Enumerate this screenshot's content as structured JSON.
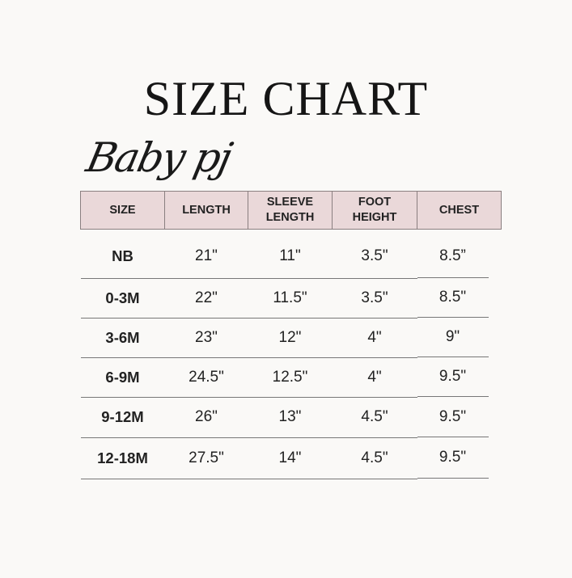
{
  "title": "SIZE CHART",
  "subtitle": "Baby pj",
  "colors": {
    "header_fill": "#ead8d9",
    "border": "#8a7f80",
    "background": "#faf9f7"
  },
  "table": {
    "headers": [
      "SIZE",
      "LENGTH",
      "SLEEVE LENGTH",
      "FOOT HEIGHT",
      "CHEST"
    ],
    "rows": [
      [
        "NB",
        "21\"",
        "11\"",
        "3.5\"",
        "8.5”"
      ],
      [
        "0-3M",
        "22\"",
        "11.5\"",
        "3.5\"",
        "8.5\""
      ],
      [
        "3-6M",
        "23\"",
        "12\"",
        "4\"",
        "9\""
      ],
      [
        "6-9M",
        "24.5\"",
        "12.5\"",
        "4\"",
        "9.5\""
      ],
      [
        "9-12M",
        "26\"",
        "13\"",
        "4.5\"",
        "9.5\""
      ],
      [
        "12-18M",
        "27.5\"",
        "14\"",
        "4.5\"",
        "9.5\""
      ]
    ]
  }
}
